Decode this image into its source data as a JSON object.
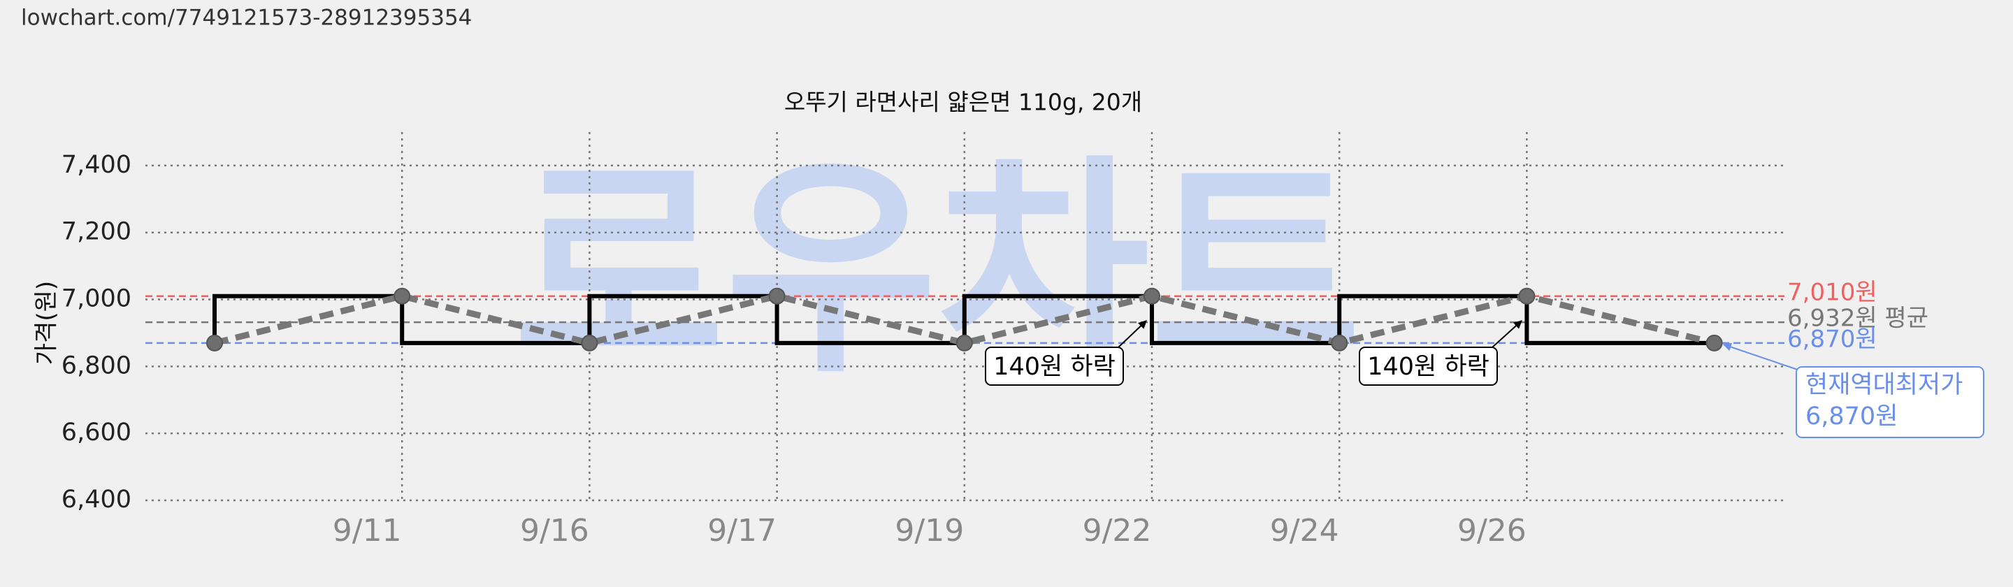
{
  "page_url": "lowchart.com/7749121573-28912395354",
  "chart_data": {
    "type": "step-line",
    "title": "오뚜기 라면사리 얇은면 110g, 20개",
    "watermark": "로우차트",
    "y_label": "가격(원)",
    "categories": [
      null,
      "9/11",
      "9/16",
      "9/17",
      "9/19",
      "9/22",
      "9/24",
      "9/26",
      null
    ],
    "values": [
      6870,
      7010,
      6870,
      7010,
      6870,
      7010,
      6870,
      7010,
      6870
    ],
    "step_color": "#000000",
    "line_color": "#777777",
    "marker_color": "#6e6e6e",
    "ylim": [
      6400,
      7500
    ],
    "yticks": [
      {
        "value": 6400,
        "label": "6,400"
      },
      {
        "value": 6600,
        "label": "6,600"
      },
      {
        "value": 6800,
        "label": "6,800"
      },
      {
        "value": 7000,
        "label": "7,000"
      },
      {
        "value": 7200,
        "label": "7,200"
      },
      {
        "value": 7400,
        "label": "7,400"
      }
    ],
    "grid": true,
    "ref_lines": [
      {
        "value": 7010,
        "label": "7,010원",
        "color": "#f06060"
      },
      {
        "value": 6932,
        "label": "6,932원 평균",
        "color": "#777777"
      },
      {
        "value": 6870,
        "label": "6,870원",
        "color": "#6a8fe8"
      }
    ],
    "annotations": [
      {
        "text": "140원 하락"
      },
      {
        "text": "140원 하락"
      },
      {
        "text": [
          "현재역대최저가",
          "6,870원"
        ]
      }
    ]
  }
}
